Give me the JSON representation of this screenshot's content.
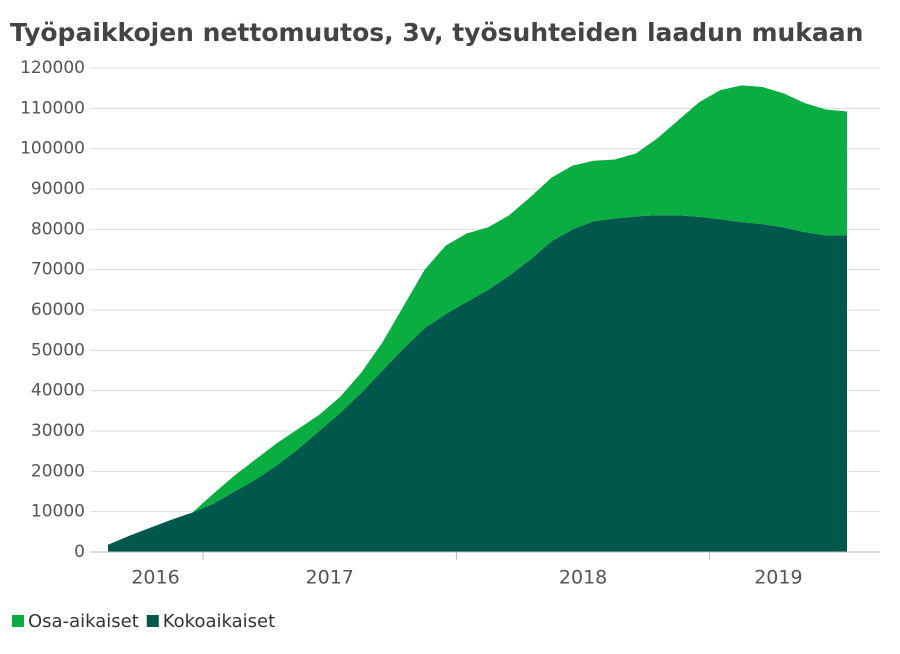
{
  "chart_data": {
    "type": "stacked_area",
    "title": "Työpaikkojen nettomuutos, 3v, työsuhteiden laadun mukaan",
    "categories": [
      "2016",
      null,
      null,
      null,
      null,
      "2017",
      null,
      null,
      null,
      null,
      null,
      null,
      null,
      null,
      null,
      null,
      null,
      "2018",
      null,
      null,
      null,
      null,
      null,
      null,
      null,
      null,
      null,
      null,
      null,
      "2019",
      null,
      null,
      null,
      null,
      null,
      null
    ],
    "series": [
      {
        "name": "Osa-aikaiset",
        "color": "#0aad3f",
        "values": [
          0,
          0,
          0,
          0,
          0,
          2500,
          4000,
          5000,
          5500,
          5000,
          4000,
          4000,
          5000,
          7000,
          10500,
          14500,
          17000,
          17000,
          15500,
          15000,
          15500,
          15800,
          15800,
          15000,
          14600,
          15600,
          19000,
          23500,
          28400,
          32000,
          33900,
          34000,
          33200,
          32000,
          31200,
          30700
        ]
      },
      {
        "name": "Kokoaikaiset",
        "color": "#00574b",
        "values": [
          1800,
          4000,
          6000,
          8000,
          9800,
          12000,
          15000,
          18000,
          21500,
          25500,
          30000,
          34500,
          39500,
          45000,
          50500,
          55500,
          59000,
          62000,
          65000,
          68500,
          72500,
          77000,
          80000,
          82000,
          82700,
          83200,
          83500,
          83500,
          83100,
          82500,
          81800,
          81300,
          80500,
          79300,
          78500,
          78500
        ]
      }
    ],
    "ylim": [
      0,
      120000
    ],
    "yticks": [
      0,
      10000,
      20000,
      30000,
      40000,
      50000,
      60000,
      70000,
      80000,
      90000,
      100000,
      110000,
      120000
    ],
    "grid": true,
    "legend": "bottom-left"
  }
}
